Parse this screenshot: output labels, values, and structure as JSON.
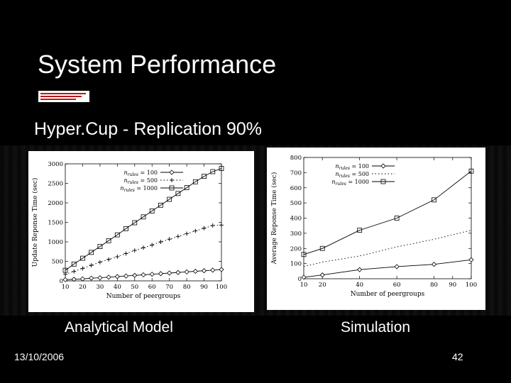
{
  "slide": {
    "title": "System Performance",
    "subtitle": "Hyper.Cup - Replication 90%",
    "caption_left": "Analytical Model",
    "caption_right": "Simulation",
    "footer_date": "13/10/2006",
    "page_number": "42"
  },
  "chart_data": [
    {
      "type": "line",
      "xlabel": "Number of peergroups",
      "ylabel": "Update Reponse Time (sec)",
      "xlim": [
        10,
        100
      ],
      "ylim": [
        0,
        3000
      ],
      "xticks": [
        10,
        20,
        30,
        40,
        50,
        60,
        70,
        80,
        90,
        100
      ],
      "yticks": [
        0,
        500,
        1000,
        1500,
        2000,
        2500,
        3000
      ],
      "grid": false,
      "legend_position": "top-left",
      "series": [
        {
          "name": "n_rules = 100",
          "marker": "diamond",
          "dash": "solid",
          "x": [
            10,
            15,
            20,
            25,
            30,
            35,
            40,
            45,
            50,
            55,
            60,
            65,
            70,
            75,
            80,
            85,
            90,
            95,
            100
          ],
          "values": [
            30,
            40,
            50,
            70,
            80,
            95,
            110,
            125,
            140,
            155,
            170,
            185,
            200,
            215,
            230,
            245,
            260,
            275,
            290
          ]
        },
        {
          "name": "n_rules = 500",
          "marker": "plus",
          "dash": "dotted",
          "x": [
            10,
            15,
            20,
            25,
            30,
            35,
            40,
            45,
            50,
            55,
            60,
            65,
            70,
            75,
            80,
            85,
            90,
            95,
            100
          ],
          "values": [
            170,
            240,
            320,
            400,
            480,
            550,
            620,
            700,
            780,
            850,
            920,
            1000,
            1070,
            1140,
            1210,
            1280,
            1350,
            1420,
            1430
          ]
        },
        {
          "name": "n_rules = 1000",
          "marker": "square",
          "dash": "solid",
          "x": [
            10,
            15,
            20,
            25,
            30,
            35,
            40,
            45,
            50,
            55,
            60,
            65,
            70,
            75,
            80,
            85,
            90,
            95,
            100
          ],
          "values": [
            270,
            430,
            580,
            730,
            880,
            1030,
            1180,
            1340,
            1490,
            1640,
            1790,
            1940,
            2090,
            2240,
            2390,
            2540,
            2680,
            2800,
            2880
          ]
        }
      ]
    },
    {
      "type": "line",
      "xlabel": "Number of peergroups",
      "ylabel": "Average Reponse Time (sec)",
      "xlim": [
        10,
        100
      ],
      "ylim": [
        0,
        800
      ],
      "xticks": [
        10,
        20,
        40,
        60,
        80,
        90,
        100
      ],
      "yticks": [
        0,
        100,
        200,
        300,
        400,
        500,
        600,
        700,
        800
      ],
      "grid": false,
      "legend_position": "top-left",
      "series": [
        {
          "name": "n_rules = 100",
          "marker": "diamond",
          "dash": "solid",
          "x": [
            10,
            20,
            40,
            60,
            80,
            100
          ],
          "values": [
            10,
            25,
            60,
            80,
            95,
            125
          ]
        },
        {
          "name": "n_rules = 500",
          "marker": "none",
          "dash": "dotted",
          "x": [
            10,
            20,
            40,
            60,
            80,
            100
          ],
          "values": [
            80,
            110,
            150,
            210,
            260,
            320
          ]
        },
        {
          "name": "n_rules = 1000",
          "marker": "square",
          "dash": "solid",
          "x": [
            10,
            20,
            40,
            60,
            80,
            100
          ],
          "values": [
            160,
            200,
            320,
            400,
            520,
            710
          ]
        }
      ]
    }
  ]
}
